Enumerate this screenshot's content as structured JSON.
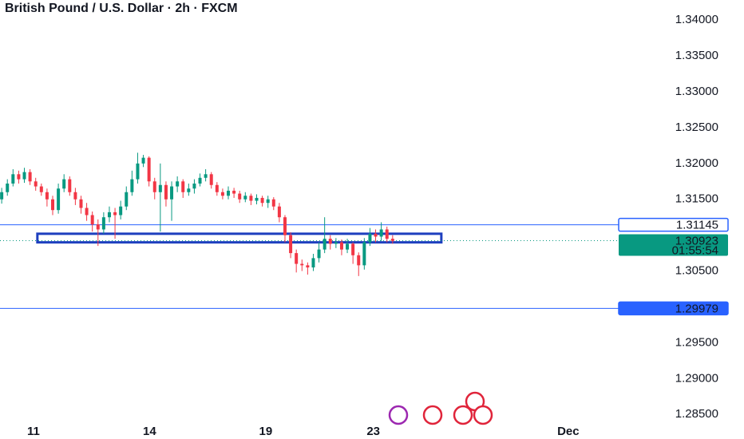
{
  "chart_data": {
    "type": "candlestick",
    "title": "British Pound / U.S. Dollar · 2h · FXCM",
    "x": [
      0,
      1,
      2,
      3,
      4,
      5,
      6,
      7,
      8,
      9,
      10,
      11,
      12,
      13,
      14,
      15,
      16,
      17,
      18,
      19,
      20,
      21,
      22,
      23,
      24,
      25,
      26,
      27,
      28,
      29,
      30,
      31,
      32,
      33,
      34,
      35,
      36,
      37,
      38,
      39,
      40,
      41,
      42,
      43,
      44,
      45,
      46,
      47,
      48,
      49,
      50,
      51,
      52,
      53,
      54,
      55,
      56,
      57,
      58,
      59,
      60,
      61,
      62,
      63,
      64,
      65,
      66,
      67,
      68,
      69
    ],
    "open": [
      1.315,
      1.316,
      1.3172,
      1.3185,
      1.3178,
      1.3188,
      1.3175,
      1.3168,
      1.316,
      1.315,
      1.3135,
      1.3165,
      1.3178,
      1.316,
      1.315,
      1.3138,
      1.3128,
      1.3115,
      1.3108,
      1.3125,
      1.3132,
      1.3128,
      1.314,
      1.316,
      1.3178,
      1.32,
      1.3208,
      1.3175,
      1.316,
      1.317,
      1.315,
      1.3168,
      1.3175,
      1.316,
      1.3165,
      1.3172,
      1.318,
      1.3185,
      1.317,
      1.316,
      1.3155,
      1.3162,
      1.3158,
      1.315,
      1.3155,
      1.3148,
      1.3152,
      1.3145,
      1.315,
      1.314,
      1.3125,
      1.31,
      1.3075,
      1.306,
      1.3058,
      1.3055,
      1.3068,
      1.308,
      1.3095,
      1.3088,
      1.309,
      1.308,
      1.3088,
      1.3072,
      1.3058,
      1.309,
      1.3102,
      1.3098,
      1.3108,
      1.3095
    ],
    "high": [
      1.3166,
      1.3178,
      1.3192,
      1.319,
      1.3194,
      1.3192,
      1.318,
      1.3172,
      1.3165,
      1.3155,
      1.3172,
      1.3185,
      1.3182,
      1.3166,
      1.3155,
      1.3145,
      1.3133,
      1.3122,
      1.3132,
      1.314,
      1.3138,
      1.3148,
      1.3168,
      1.319,
      1.3215,
      1.3212,
      1.321,
      1.318,
      1.32,
      1.3175,
      1.3175,
      1.3182,
      1.3178,
      1.3172,
      1.3178,
      1.3186,
      1.3192,
      1.3188,
      1.3174,
      1.3165,
      1.3168,
      1.3166,
      1.3162,
      1.316,
      1.3158,
      1.3157,
      1.3155,
      1.3155,
      1.3153,
      1.3145,
      1.3128,
      1.3104,
      1.308,
      1.3066,
      1.3062,
      1.3074,
      1.309,
      1.3125,
      1.31,
      1.3096,
      1.3094,
      1.3095,
      1.309,
      1.3076,
      1.3096,
      1.311,
      1.3108,
      1.3118,
      1.3112,
      1.31
    ],
    "low": [
      1.3144,
      1.3155,
      1.3168,
      1.3172,
      1.3173,
      1.317,
      1.3162,
      1.3155,
      1.314,
      1.3128,
      1.313,
      1.316,
      1.3155,
      1.3142,
      1.313,
      1.312,
      1.3105,
      1.3085,
      1.3102,
      1.3118,
      1.3095,
      1.3122,
      1.3135,
      1.3155,
      1.3172,
      1.3195,
      1.3168,
      1.315,
      1.3105,
      1.314,
      1.312,
      1.316,
      1.3152,
      1.3155,
      1.3158,
      1.3168,
      1.3175,
      1.3165,
      1.3155,
      1.315,
      1.315,
      1.3152,
      1.3145,
      1.3146,
      1.3142,
      1.3143,
      1.314,
      1.3138,
      1.3135,
      1.3118,
      1.309,
      1.3068,
      1.3048,
      1.305,
      1.3045,
      1.305,
      1.3062,
      1.3075,
      1.308,
      1.3082,
      1.3072,
      1.3075,
      1.306,
      1.3043,
      1.3052,
      1.3085,
      1.309,
      1.3092,
      1.309,
      1.3088
    ],
    "close": [
      1.316,
      1.3172,
      1.3185,
      1.3178,
      1.3188,
      1.3175,
      1.3168,
      1.316,
      1.315,
      1.3135,
      1.3165,
      1.3178,
      1.316,
      1.315,
      1.3138,
      1.3128,
      1.3115,
      1.3108,
      1.3125,
      1.3132,
      1.3128,
      1.314,
      1.316,
      1.3178,
      1.32,
      1.3208,
      1.3175,
      1.316,
      1.317,
      1.315,
      1.3168,
      1.3175,
      1.316,
      1.3165,
      1.3172,
      1.318,
      1.3185,
      1.317,
      1.316,
      1.3155,
      1.3162,
      1.3158,
      1.315,
      1.3155,
      1.3148,
      1.3152,
      1.3145,
      1.315,
      1.314,
      1.3125,
      1.31,
      1.3075,
      1.306,
      1.3058,
      1.3055,
      1.3068,
      1.308,
      1.3095,
      1.3088,
      1.309,
      1.308,
      1.3088,
      1.3072,
      1.3058,
      1.309,
      1.3102,
      1.3098,
      1.3108,
      1.3095,
      1.3092
    ],
    "up_color": "#089981",
    "down_color": "#f23645",
    "xlim": [
      -0.3,
      108.9
    ],
    "xticks": [
      {
        "value": 5.6,
        "label": "11"
      },
      {
        "value": 26.1,
        "label": "14"
      },
      {
        "value": 46.6,
        "label": "19"
      },
      {
        "value": 65.6,
        "label": "23"
      },
      {
        "value": 100,
        "label": "Dec"
      }
    ],
    "ylim": [
      1.2838,
      1.3428
    ],
    "yticks": [
      {
        "value": 1.34,
        "label": "1.34000"
      },
      {
        "value": 1.335,
        "label": "1.33500"
      },
      {
        "value": 1.33,
        "label": "1.33000"
      },
      {
        "value": 1.325,
        "label": "1.32500"
      },
      {
        "value": 1.32,
        "label": "1.32000"
      },
      {
        "value": 1.315,
        "label": "1.31500"
      },
      {
        "value": 1.305,
        "label": "1.30500"
      },
      {
        "value": 1.295,
        "label": "1.29500"
      },
      {
        "value": 1.29,
        "label": "1.29000"
      },
      {
        "value": 1.285,
        "label": "1.28500"
      }
    ],
    "hlines": [
      {
        "value": 1.31145,
        "color": "#2962ff"
      },
      {
        "value": 1.29979,
        "color": "#2962ff"
      }
    ],
    "zone": {
      "x": [
        6.3,
        77.6
      ],
      "y": [
        1.309,
        1.3102
      ],
      "color": "#1e3fbf"
    },
    "last_price": {
      "value": 1.30923,
      "countdown": "01:55:54",
      "color": "#089981"
    }
  }
}
